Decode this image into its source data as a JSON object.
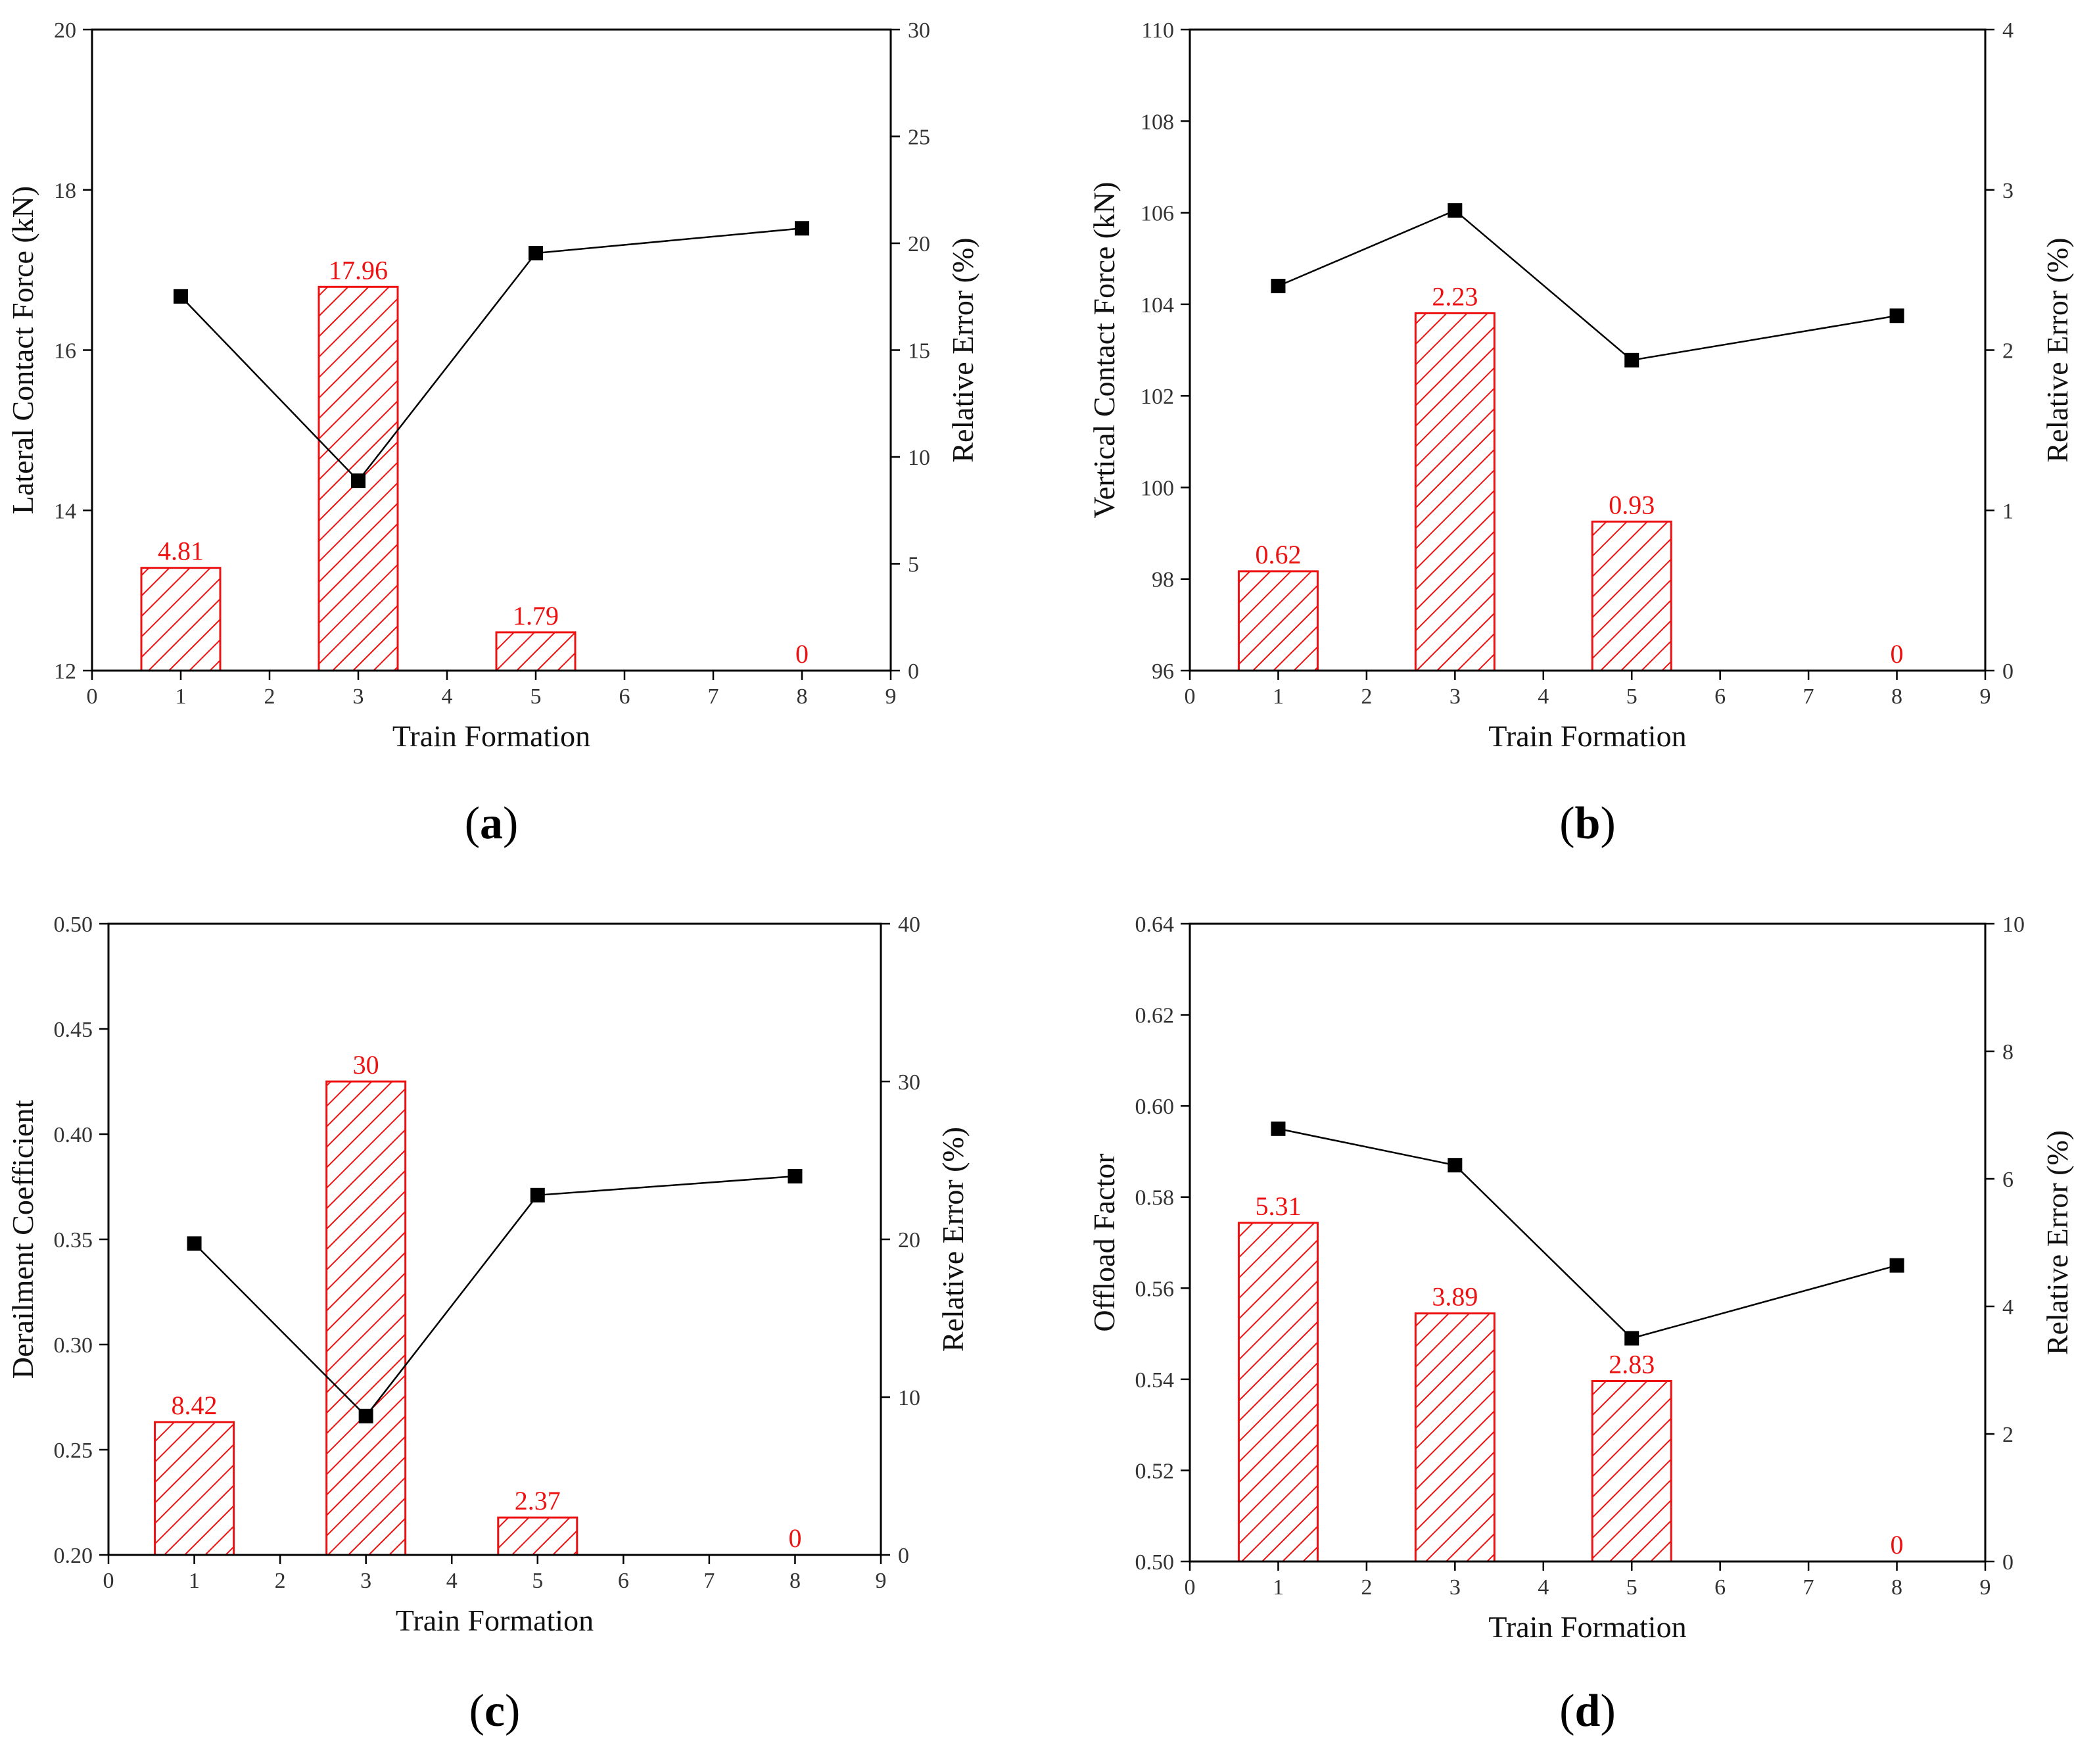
{
  "chart_data": [
    {
      "type": "bar",
      "panel_label": "a",
      "xlabel": "Train Formation",
      "ylabel": "Lateral Contact Force (kN)",
      "y2label": "Relative Error (%)",
      "xlim": [
        0,
        9
      ],
      "ylim": [
        12,
        20
      ],
      "y2lim": [
        0,
        30
      ],
      "xticks": [
        0,
        1,
        2,
        3,
        4,
        5,
        6,
        7,
        8,
        9
      ],
      "yticks": [
        12,
        14,
        16,
        18,
        20
      ],
      "y2ticks": [
        0,
        5,
        10,
        15,
        20,
        25,
        30
      ],
      "categories": [
        1,
        3,
        5,
        8
      ],
      "series": [
        {
          "name": "Relative Error (%)",
          "kind": "bar",
          "axis": "right",
          "values": [
            4.81,
            17.96,
            1.79,
            0
          ],
          "labels": [
            "4.81",
            "17.96",
            "1.79",
            "0"
          ]
        },
        {
          "name": "Lateral Contact Force (kN)",
          "kind": "line",
          "axis": "left",
          "values": [
            16.67,
            14.37,
            17.21,
            17.52
          ]
        }
      ]
    },
    {
      "type": "bar",
      "panel_label": "b",
      "xlabel": "Train Formation",
      "ylabel": "Vertical Contact Force (kN)",
      "y2label": "Relative Error (%)",
      "xlim": [
        0,
        9
      ],
      "ylim": [
        96,
        110
      ],
      "y2lim": [
        0,
        4
      ],
      "xticks": [
        0,
        1,
        2,
        3,
        4,
        5,
        6,
        7,
        8,
        9
      ],
      "yticks": [
        96,
        98,
        100,
        102,
        104,
        106,
        108,
        110
      ],
      "y2ticks": [
        0,
        1,
        2,
        3,
        4
      ],
      "categories": [
        1,
        3,
        5,
        8
      ],
      "series": [
        {
          "name": "Relative Error (%)",
          "kind": "bar",
          "axis": "right",
          "values": [
            0.62,
            2.23,
            0.93,
            0
          ],
          "labels": [
            "0.62",
            "2.23",
            "0.93",
            "0"
          ]
        },
        {
          "name": "Vertical Contact Force (kN)",
          "kind": "line",
          "axis": "left",
          "values": [
            104.4,
            106.05,
            102.78,
            103.75
          ]
        }
      ]
    },
    {
      "type": "bar",
      "panel_label": "c",
      "xlabel": "Train Formation",
      "ylabel": "Derailment Coefficient",
      "y2label": "Relative Error (%)",
      "xlim": [
        0,
        9
      ],
      "ylim": [
        0.2,
        0.5
      ],
      "y2lim": [
        0,
        40
      ],
      "xticks": [
        0,
        1,
        2,
        3,
        4,
        5,
        6,
        7,
        8,
        9
      ],
      "yticks": [
        "0.20",
        "0.25",
        "0.30",
        "0.35",
        "0.40",
        "0.45",
        "0.50"
      ],
      "y2ticks": [
        0,
        10,
        20,
        30,
        40
      ],
      "categories": [
        1,
        3,
        5,
        8
      ],
      "series": [
        {
          "name": "Relative Error (%)",
          "kind": "bar",
          "axis": "right",
          "values": [
            8.42,
            30,
            2.37,
            0
          ],
          "labels": [
            "8.42",
            "30",
            "2.37",
            "0"
          ]
        },
        {
          "name": "Derailment Coefficient",
          "kind": "line",
          "axis": "left",
          "values": [
            0.348,
            0.266,
            0.371,
            0.38
          ]
        }
      ]
    },
    {
      "type": "bar",
      "panel_label": "d",
      "xlabel": "Train Formation",
      "ylabel": "Offload Factor",
      "y2label": "Relative Error (%)",
      "xlim": [
        0,
        9
      ],
      "ylim": [
        0.5,
        0.64
      ],
      "y2lim": [
        0,
        10
      ],
      "xticks": [
        0,
        1,
        2,
        3,
        4,
        5,
        6,
        7,
        8,
        9
      ],
      "yticks": [
        "0.50",
        "0.52",
        "0.54",
        "0.56",
        "0.58",
        "0.60",
        "0.62",
        "0.64"
      ],
      "y2ticks": [
        0,
        2,
        4,
        6,
        8,
        10
      ],
      "categories": [
        1,
        3,
        5,
        8
      ],
      "series": [
        {
          "name": "Relative Error (%)",
          "kind": "bar",
          "axis": "right",
          "values": [
            5.31,
            3.89,
            2.83,
            0
          ],
          "labels": [
            "5.31",
            "3.89",
            "2.83",
            "0"
          ]
        },
        {
          "name": "Offload Factor",
          "kind": "line",
          "axis": "left",
          "values": [
            0.595,
            0.587,
            0.549,
            0.565
          ]
        }
      ]
    }
  ],
  "colors": {
    "bar": "#ee1111",
    "line": "#000000",
    "axis": "#000000"
  }
}
